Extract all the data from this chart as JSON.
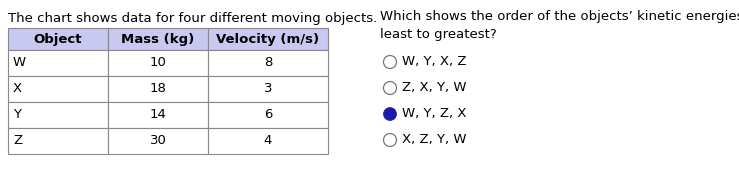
{
  "title_left": "The chart shows data for four different moving objects.",
  "title_right": "Which shows the order of the objects’ kinetic energies, from\nleast to greatest?",
  "table_headers": [
    "Object",
    "Mass (kg)",
    "Velocity (m/s)"
  ],
  "table_rows": [
    [
      "W",
      "10",
      "8"
    ],
    [
      "X",
      "18",
      "3"
    ],
    [
      "Y",
      "14",
      "6"
    ],
    [
      "Z",
      "30",
      "4"
    ]
  ],
  "header_bg": "#c8c8f0",
  "options": [
    {
      "text": "W, Y, X, Z",
      "selected": false
    },
    {
      "text": "Z, X, Y, W",
      "selected": false
    },
    {
      "text": "W, Y, Z, X",
      "selected": true
    },
    {
      "text": "X, Z, Y, W",
      "selected": false
    }
  ],
  "font_size": 9.5,
  "table_font_size": 9.5,
  "option_font_size": 9.5,
  "bg_color": "#ffffff",
  "text_color": "#000000",
  "selected_fill": "#1a1aaa",
  "selected_dot": "#ffffff",
  "unselected_color": "#555555",
  "table_edge_color": "#888888",
  "figsize": [
    7.39,
    1.81
  ],
  "dpi": 100
}
